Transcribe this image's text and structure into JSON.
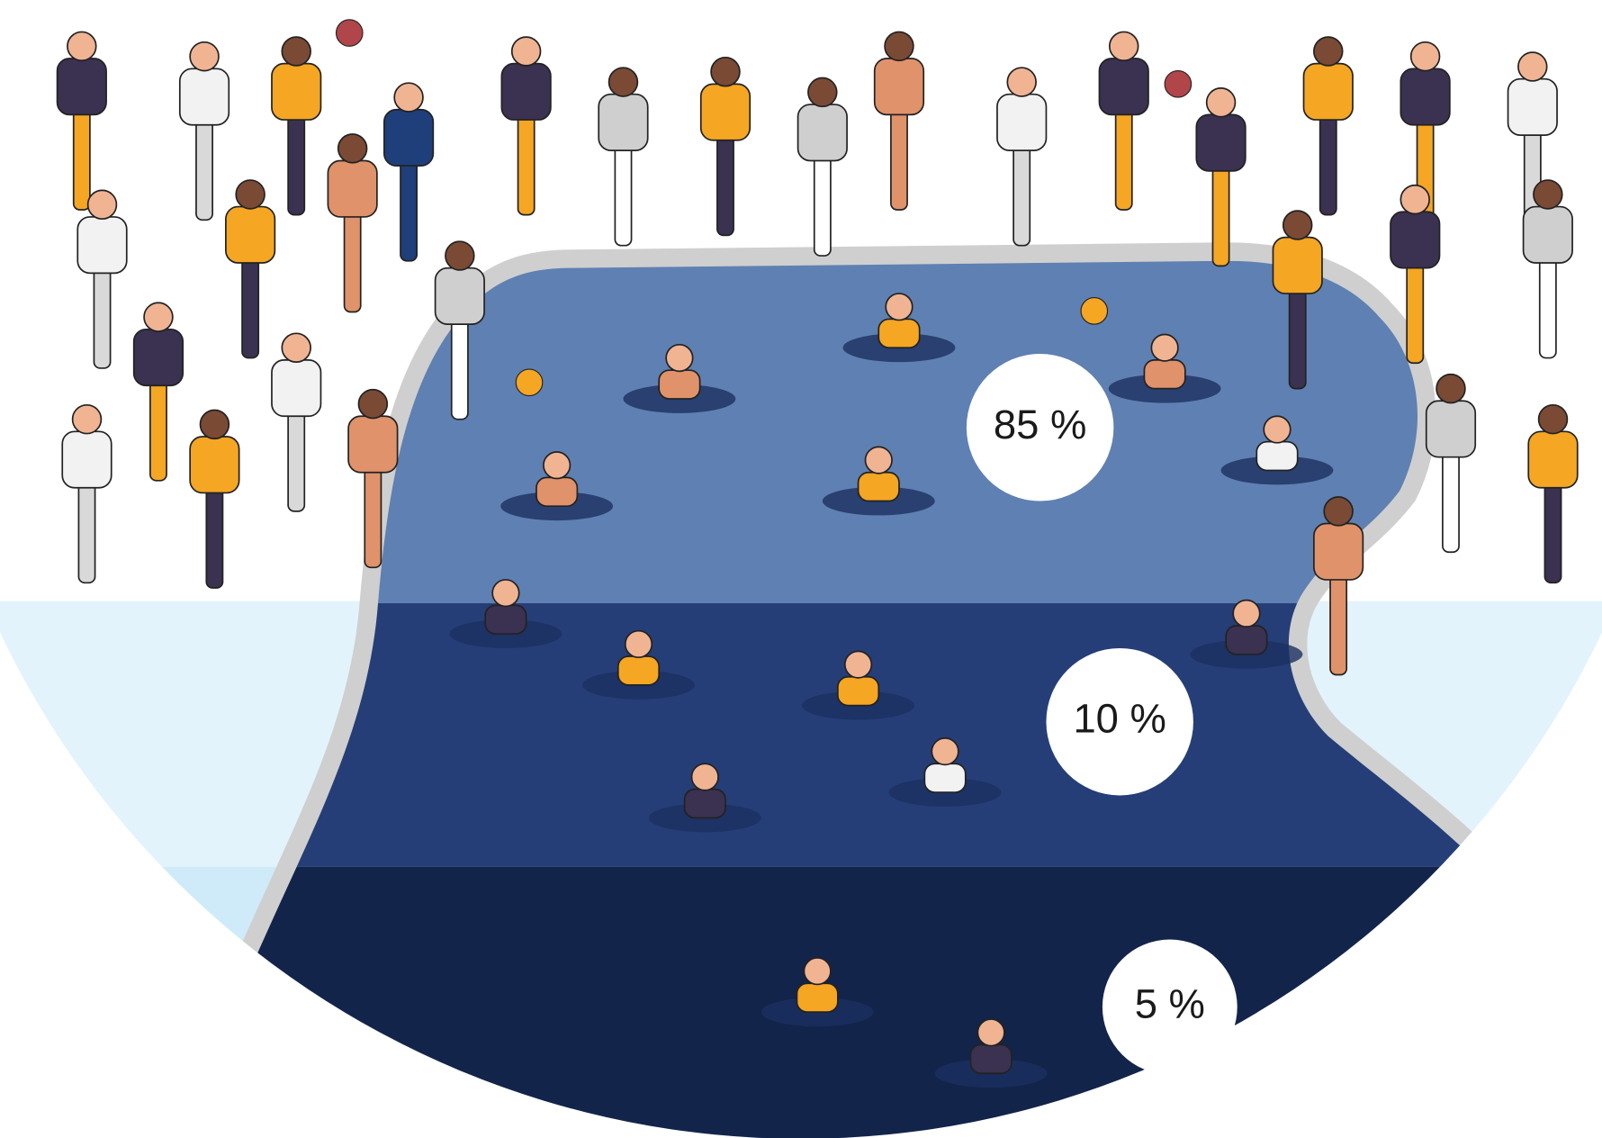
{
  "labels": [
    "85 %",
    "10 %",
    "5 %"
  ]
}
